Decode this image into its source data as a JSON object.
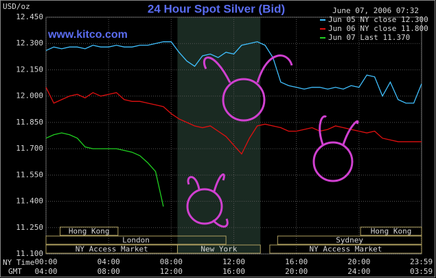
{
  "chart_data": {
    "type": "line",
    "title": "24 Hour Spot Silver (Bid)",
    "unit_label": "USD/oz",
    "timestamp": "June 07, 2006 07:32",
    "watermark": "www.kitco.com",
    "x_row_labels": [
      "NY Time",
      "GMT"
    ],
    "x": [
      0,
      0.5,
      1,
      1.5,
      2,
      2.5,
      3,
      3.5,
      4,
      4.5,
      5,
      5.5,
      6,
      6.5,
      7,
      7.5,
      8,
      8.5,
      9,
      9.5,
      10,
      10.5,
      11,
      11.5,
      12,
      12.5,
      13,
      13.5,
      14,
      14.5,
      15,
      15.5,
      16,
      16.5,
      17,
      17.5,
      18,
      18.5,
      19,
      19.5,
      20,
      20.5,
      21,
      21.5,
      22,
      22.5,
      23,
      23.5,
      24
    ],
    "series": [
      {
        "name": "Jun 05 NY close 12.300",
        "color": "#40c0ff",
        "values": [
          12.26,
          12.28,
          12.27,
          12.28,
          12.28,
          12.27,
          12.29,
          12.28,
          12.28,
          12.29,
          12.28,
          12.28,
          12.29,
          12.29,
          12.3,
          12.31,
          12.31,
          12.25,
          12.2,
          12.17,
          12.23,
          12.24,
          12.22,
          12.25,
          12.24,
          12.29,
          12.3,
          12.31,
          12.29,
          12.22,
          12.08,
          12.06,
          12.05,
          12.04,
          12.05,
          12.05,
          12.04,
          12.05,
          12.04,
          12.06,
          12.05,
          12.12,
          12.11,
          12.0,
          12.08,
          11.98,
          11.96,
          11.96,
          12.07
        ]
      },
      {
        "name": "Jun 06 NY close 11.800",
        "color": "#e01010",
        "values": [
          12.05,
          11.96,
          11.98,
          12.0,
          12.01,
          11.99,
          12.02,
          12.0,
          12.01,
          12.02,
          11.98,
          11.97,
          11.97,
          11.96,
          11.95,
          11.94,
          11.9,
          11.87,
          11.85,
          11.83,
          11.82,
          11.83,
          11.8,
          11.77,
          11.72,
          11.67,
          11.76,
          11.83,
          11.84,
          11.83,
          11.82,
          11.8,
          11.8,
          11.81,
          11.82,
          11.8,
          11.81,
          11.83,
          11.82,
          11.81,
          11.8,
          11.79,
          11.8,
          11.76,
          11.75,
          11.74,
          11.74,
          11.74,
          11.74
        ]
      },
      {
        "name": "Jun 07 Last 11.370",
        "color": "#20d020",
        "values": [
          11.76,
          11.78,
          11.79,
          11.78,
          11.76,
          11.71,
          11.7,
          11.7,
          11.7,
          11.7,
          11.69,
          11.68,
          11.66,
          11.62,
          11.57,
          11.37,
          null,
          null,
          null,
          null,
          null,
          null,
          null,
          null,
          null,
          null,
          null,
          null,
          null,
          null,
          null,
          null,
          null,
          null,
          null,
          null,
          null,
          null,
          null,
          null,
          null,
          null,
          null,
          null,
          null,
          null,
          null,
          null,
          null
        ]
      }
    ],
    "xlim": [
      0,
      24
    ],
    "xticks": [
      {
        "value": 0,
        "label": "00:00"
      },
      {
        "value": 4,
        "label": "04:00"
      },
      {
        "value": 8,
        "label": "08:00"
      },
      {
        "value": 12,
        "label": "12:00"
      },
      {
        "value": 16,
        "label": "16:00"
      },
      {
        "value": 20,
        "label": "20:00"
      },
      {
        "value": 23.983,
        "label": "23:59"
      }
    ],
    "gmt_labels": [
      "04:00",
      "08:00",
      "12:00",
      "16:00",
      "20:00",
      "24:00",
      "03:59"
    ],
    "ylim": [
      11.1,
      12.45
    ],
    "yticks": [
      {
        "value": 11.1,
        "label": "11.100"
      },
      {
        "value": 11.25,
        "label": "11.250"
      },
      {
        "value": 11.4,
        "label": "11.400"
      },
      {
        "value": 11.55,
        "label": "11.550"
      },
      {
        "value": 11.7,
        "label": "11.700"
      },
      {
        "value": 11.85,
        "label": "11.850"
      },
      {
        "value": 12.0,
        "label": "12.000"
      },
      {
        "value": 12.15,
        "label": "12.150"
      },
      {
        "value": 12.3,
        "label": "12.300"
      },
      {
        "value": 12.45,
        "label": "12.450"
      }
    ],
    "grid": true,
    "legend": "upper right",
    "sessions": [
      "Hong Kong",
      "London",
      "NY Access Market",
      "New York",
      "Sydney",
      "Hong Kong",
      "NY Access Market"
    ]
  }
}
